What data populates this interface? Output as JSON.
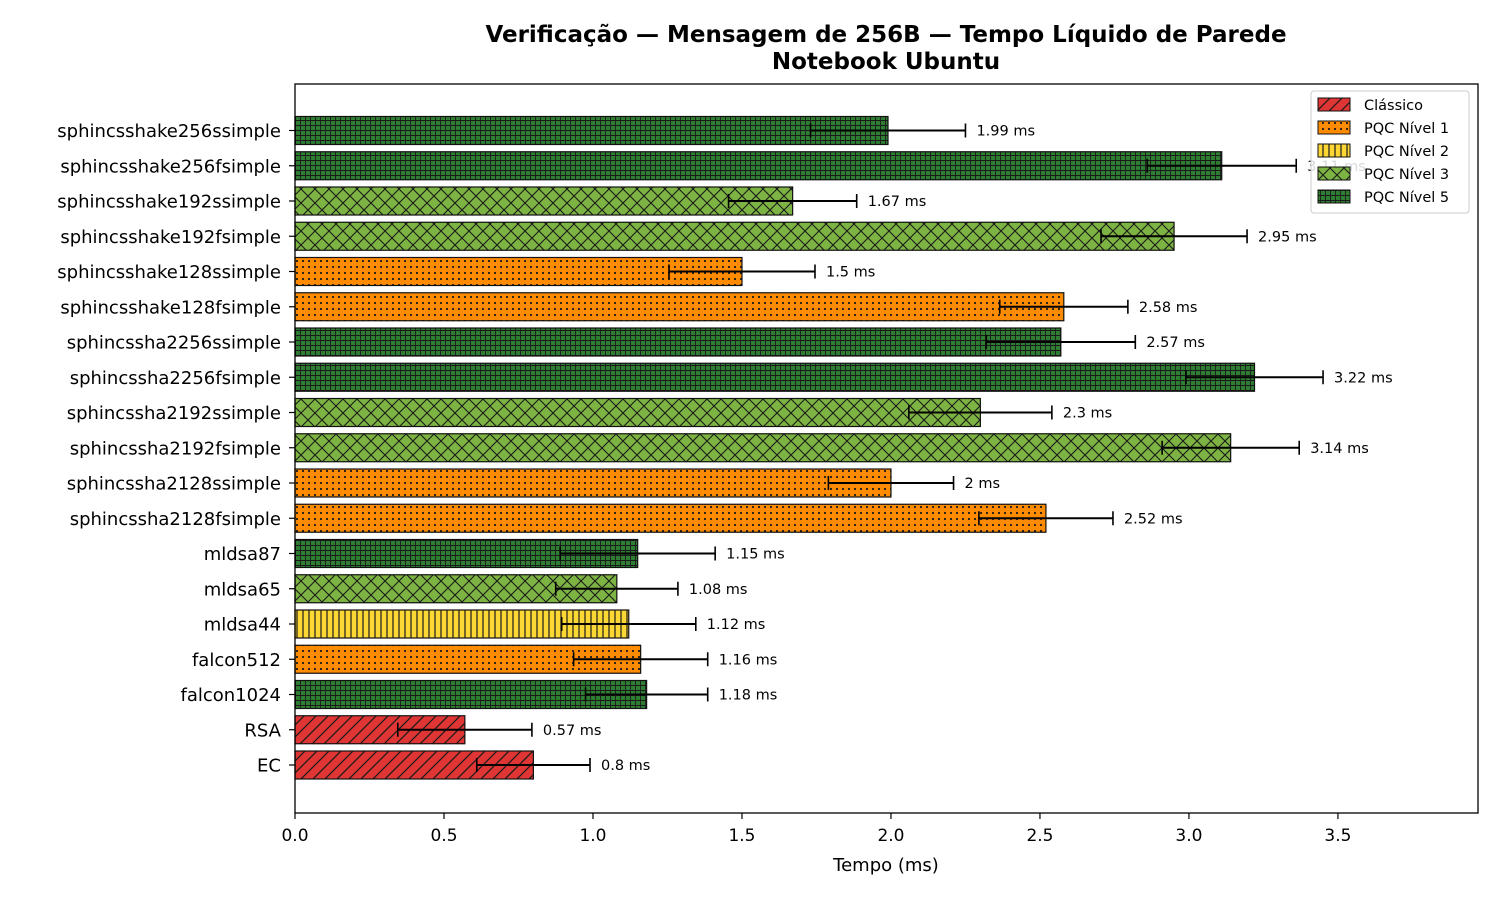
{
  "chart_data": {
    "type": "bar",
    "orientation": "horizontal",
    "title": "Verificação — Mensagem de 256B — Tempo Líquido de Parede",
    "subtitle": "Notebook Ubuntu",
    "xlabel": "Tempo (ms)",
    "ylabel": "",
    "xlim": [
      0,
      3.97
    ],
    "xticks": [
      "0.0",
      "0.5",
      "1.0",
      "1.5",
      "2.0",
      "2.5",
      "3.0",
      "3.5"
    ],
    "grid": false,
    "legend_position": "top-right",
    "legend": [
      {
        "name": "Clássico",
        "color": "#e03535",
        "pattern": "diagonal"
      },
      {
        "name": "PQC Nível 1",
        "color": "#ff8c00",
        "pattern": "dots"
      },
      {
        "name": "PQC Nível 2",
        "color": "#fdd835",
        "pattern": "vertical"
      },
      {
        "name": "PQC Nível 3",
        "color": "#7cb342",
        "pattern": "crosshatch"
      },
      {
        "name": "PQC Nível 5",
        "color": "#2e7d32",
        "pattern": "grid"
      }
    ],
    "bars": [
      {
        "category": "EC",
        "value": 0.8,
        "error": 0.19,
        "group": 0,
        "label": "0.8 ms"
      },
      {
        "category": "RSA",
        "value": 0.57,
        "error": 0.225,
        "group": 0,
        "label": "0.57 ms"
      },
      {
        "category": "falcon1024",
        "value": 1.18,
        "error": 0.205,
        "group": 4,
        "label": "1.18 ms"
      },
      {
        "category": "falcon512",
        "value": 1.16,
        "error": 0.225,
        "group": 1,
        "label": "1.16 ms"
      },
      {
        "category": "mldsa44",
        "value": 1.12,
        "error": 0.225,
        "group": 2,
        "label": "1.12 ms"
      },
      {
        "category": "mldsa65",
        "value": 1.08,
        "error": 0.205,
        "group": 3,
        "label": "1.08 ms"
      },
      {
        "category": "mldsa87",
        "value": 1.15,
        "error": 0.26,
        "group": 4,
        "label": "1.15 ms"
      },
      {
        "category": "sphincssha2128fsimple",
        "value": 2.52,
        "error": 0.225,
        "group": 1,
        "label": "2.52 ms"
      },
      {
        "category": "sphincssha2128ssimple",
        "value": 2.0,
        "error": 0.21,
        "group": 1,
        "label": "2 ms"
      },
      {
        "category": "sphincssha2192fsimple",
        "value": 3.14,
        "error": 0.23,
        "group": 3,
        "label": "3.14 ms"
      },
      {
        "category": "sphincssha2192ssimple",
        "value": 2.3,
        "error": 0.24,
        "group": 3,
        "label": "2.3 ms"
      },
      {
        "category": "sphincssha2256fsimple",
        "value": 3.22,
        "error": 0.23,
        "group": 4,
        "label": "3.22 ms"
      },
      {
        "category": "sphincssha2256ssimple",
        "value": 2.57,
        "error": 0.25,
        "group": 4,
        "label": "2.57 ms"
      },
      {
        "category": "sphincsshake128fsimple",
        "value": 2.58,
        "error": 0.215,
        "group": 1,
        "label": "2.58 ms"
      },
      {
        "category": "sphincsshake128ssimple",
        "value": 1.5,
        "error": 0.245,
        "group": 1,
        "label": "1.5 ms"
      },
      {
        "category": "sphincsshake192fsimple",
        "value": 2.95,
        "error": 0.245,
        "group": 3,
        "label": "2.95 ms"
      },
      {
        "category": "sphincsshake192ssimple",
        "value": 1.67,
        "error": 0.215,
        "group": 3,
        "label": "1.67 ms"
      },
      {
        "category": "sphincsshake256fsimple",
        "value": 3.11,
        "error": 0.25,
        "group": 4,
        "label": "3.11 ms"
      },
      {
        "category": "sphincsshake256ssimple",
        "value": 1.99,
        "error": 0.26,
        "group": 4,
        "label": "1.99 ms"
      }
    ]
  }
}
